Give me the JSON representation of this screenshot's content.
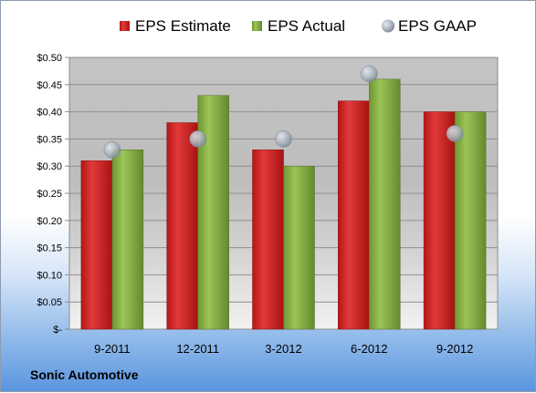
{
  "company": "Sonic Automotive",
  "legend": {
    "estimate": "EPS Estimate",
    "actual": "EPS Actual",
    "gaap": "EPS GAAP"
  },
  "colors": {
    "estimate": "#d42a2a",
    "actual": "#8bb544",
    "gaap": "#b9c3cf"
  },
  "chart_data": {
    "type": "bar",
    "categories": [
      "9-2011",
      "12-2011",
      "3-2012",
      "6-2012",
      "9-2012"
    ],
    "series": [
      {
        "name": "EPS Estimate",
        "values": [
          0.31,
          0.38,
          0.33,
          0.42,
          0.4
        ]
      },
      {
        "name": "EPS Actual",
        "values": [
          0.33,
          0.43,
          0.3,
          0.46,
          0.4
        ]
      },
      {
        "name": "EPS GAAP",
        "type": "scatter",
        "values": [
          0.33,
          0.35,
          0.35,
          0.47,
          0.36
        ]
      }
    ],
    "ylim": [
      0,
      0.5
    ],
    "yticks": [
      "$-",
      "$0.05",
      "$0.10",
      "$0.15",
      "$0.20",
      "$0.25",
      "$0.30",
      "$0.35",
      "$0.40",
      "$0.45",
      "$0.50"
    ],
    "grid": true,
    "legend_position": "top"
  }
}
